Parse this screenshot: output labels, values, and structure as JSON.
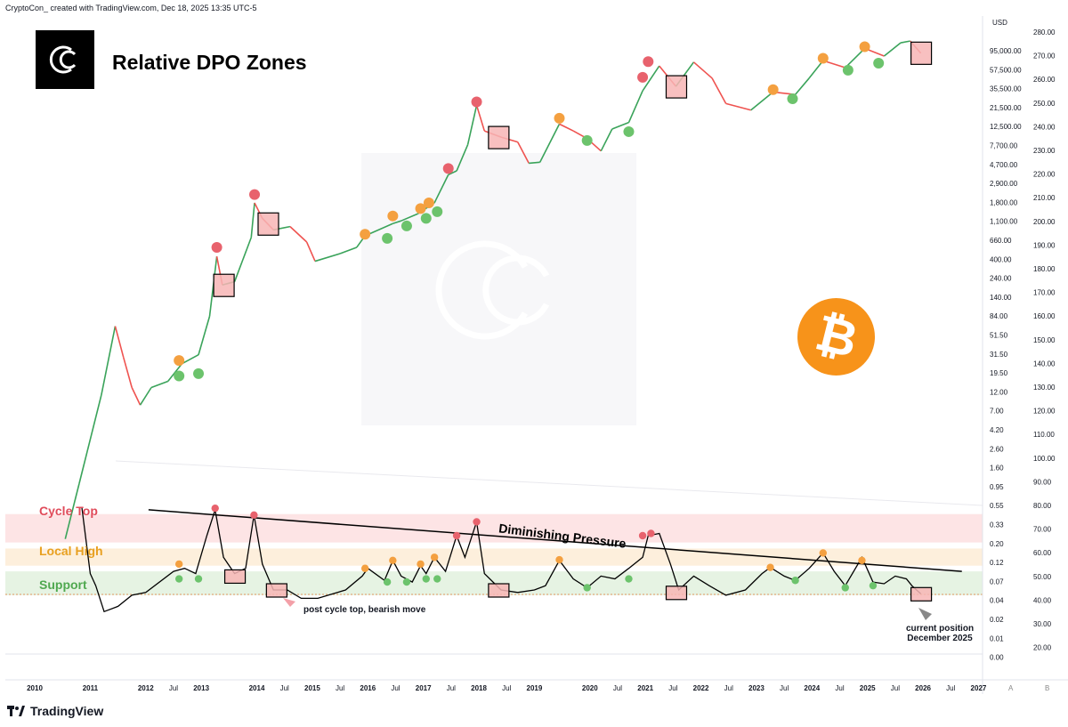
{
  "header": {
    "attribution": "CryptoCon_ created with TradingView.com, Dec 18, 2025 13:35 UTC-5"
  },
  "title": "Relative DPO Zones",
  "brand": {
    "name": "TradingView"
  },
  "currency": "USD",
  "colors": {
    "cycle_top": "#e04b5a",
    "local_high": "#f0a020",
    "support": "#5cb85c",
    "up": "#26a69a",
    "down": "#ef5350",
    "btc": "#f7931a"
  },
  "zones": {
    "cycle_top": {
      "label": "Cycle Top",
      "range": [
        0.075,
        0.25
      ]
    },
    "local_high": {
      "label": "Local High",
      "range": [
        0.028,
        0.058
      ]
    },
    "support": {
      "label": "Support",
      "range": [
        0.008,
        0.022
      ]
    }
  },
  "annotations": {
    "trendline": "Diminishing Pressure",
    "post_cycle": "post cycle top, bearish move",
    "current_line1": "current position",
    "current_line2": "December 2025"
  },
  "chart_data": {
    "type": "line",
    "x_axis": {
      "ticks": [
        {
          "label": "2010",
          "date": 2010.0,
          "bold": true
        },
        {
          "label": "2011",
          "date": 2011.0,
          "bold": true
        },
        {
          "label": "2012",
          "date": 2012.0,
          "bold": true
        },
        {
          "label": "Jul",
          "date": 2012.5,
          "bold": false
        },
        {
          "label": "2013",
          "date": 2013.0,
          "bold": true
        },
        {
          "label": "2014",
          "date": 2014.0,
          "bold": true
        },
        {
          "label": "Jul",
          "date": 2014.5,
          "bold": false
        },
        {
          "label": "2015",
          "date": 2015.0,
          "bold": true
        },
        {
          "label": "Jul",
          "date": 2015.5,
          "bold": false
        },
        {
          "label": "2016",
          "date": 2016.0,
          "bold": true
        },
        {
          "label": "Jul",
          "date": 2016.5,
          "bold": false
        },
        {
          "label": "2017",
          "date": 2017.0,
          "bold": true
        },
        {
          "label": "Jul",
          "date": 2017.5,
          "bold": false
        },
        {
          "label": "2018",
          "date": 2018.0,
          "bold": true
        },
        {
          "label": "Jul",
          "date": 2018.5,
          "bold": false
        },
        {
          "label": "2019",
          "date": 2019.0,
          "bold": true
        },
        {
          "label": "2020",
          "date": 2020.0,
          "bold": true
        },
        {
          "label": "Jul",
          "date": 2020.5,
          "bold": false
        },
        {
          "label": "2021",
          "date": 2021.0,
          "bold": true
        },
        {
          "label": "Jul",
          "date": 2021.5,
          "bold": false
        },
        {
          "label": "2022",
          "date": 2022.0,
          "bold": true
        },
        {
          "label": "Jul",
          "date": 2022.5,
          "bold": false
        },
        {
          "label": "2023",
          "date": 2023.0,
          "bold": true
        },
        {
          "label": "Jul",
          "date": 2023.5,
          "bold": false
        },
        {
          "label": "2024",
          "date": 2024.0,
          "bold": true
        },
        {
          "label": "Jul",
          "date": 2024.5,
          "bold": false
        },
        {
          "label": "2025",
          "date": 2025.0,
          "bold": true
        },
        {
          "label": "Jul",
          "date": 2025.5,
          "bold": false
        },
        {
          "label": "2026",
          "date": 2026.0,
          "bold": true
        },
        {
          "label": "Jul",
          "date": 2026.5,
          "bold": false
        },
        {
          "label": "2027",
          "date": 2027.0,
          "bold": true
        }
      ],
      "corner_labels": [
        "A",
        "B"
      ]
    },
    "price_axis": {
      "scale": "log",
      "labels": [
        "95,000.00",
        "57,500.00",
        "35,500.00",
        "21,500.00",
        "12,500.00",
        "7,700.00",
        "4,700.00",
        "2,900.00",
        "1,800.00",
        "1,100.00",
        "660.00",
        "400.00",
        "240.00",
        "140.00",
        "84.00",
        "51.50",
        "31.50",
        "19.50",
        "12.00",
        "7.00",
        "4.20",
        "2.60",
        "1.60",
        "0.95",
        "0.55",
        "0.33",
        "0.20",
        "0.12",
        "0.07",
        "0.04",
        "0.02",
        "0.01",
        "0.00"
      ]
    },
    "right_axis": {
      "labels": [
        "280.00",
        "270.00",
        "260.00",
        "250.00",
        "240.00",
        "230.00",
        "220.00",
        "210.00",
        "200.00",
        "190.00",
        "180.00",
        "170.00",
        "160.00",
        "150.00",
        "140.00",
        "130.00",
        "120.00",
        "110.00",
        "100.00",
        "90.00",
        "80.00",
        "70.00",
        "60.00",
        "50.00",
        "40.00",
        "30.00",
        "20.00"
      ]
    },
    "price_series": {
      "name": "BTC price",
      "points": [
        [
          2010.55,
          0.06
        ],
        [
          2010.8,
          0.3
        ],
        [
          2011.2,
          4
        ],
        [
          2011.45,
          30
        ],
        [
          2011.6,
          12
        ],
        [
          2011.75,
          5
        ],
        [
          2011.9,
          3
        ],
        [
          2012.1,
          5
        ],
        [
          2012.4,
          6
        ],
        [
          2012.65,
          10
        ],
        [
          2012.95,
          13
        ],
        [
          2013.15,
          40
        ],
        [
          2013.28,
          230
        ],
        [
          2013.38,
          100
        ],
        [
          2013.6,
          110
        ],
        [
          2013.9,
          400
        ],
        [
          2013.96,
          1100
        ],
        [
          2014.1,
          700
        ],
        [
          2014.3,
          500
        ],
        [
          2014.6,
          550
        ],
        [
          2014.9,
          350
        ],
        [
          2015.05,
          200
        ],
        [
          2015.5,
          250
        ],
        [
          2015.8,
          300
        ],
        [
          2015.95,
          420
        ],
        [
          2016.45,
          600
        ],
        [
          2016.6,
          650
        ],
        [
          2016.9,
          800
        ],
        [
          2017.2,
          1100
        ],
        [
          2017.45,
          2500
        ],
        [
          2017.6,
          2800
        ],
        [
          2017.8,
          6000
        ],
        [
          2017.96,
          19000
        ],
        [
          2018.1,
          9000
        ],
        [
          2018.4,
          7500
        ],
        [
          2018.7,
          6500
        ],
        [
          2018.9,
          3500
        ],
        [
          2019.1,
          3600
        ],
        [
          2019.45,
          11000
        ],
        [
          2019.7,
          9000
        ],
        [
          2019.95,
          7200
        ],
        [
          2020.2,
          5000
        ],
        [
          2020.4,
          9500
        ],
        [
          2020.7,
          11500
        ],
        [
          2020.95,
          29000
        ],
        [
          2021.25,
          60000
        ],
        [
          2021.55,
          33000
        ],
        [
          2021.87,
          67000
        ],
        [
          2022.2,
          42000
        ],
        [
          2022.45,
          20000
        ],
        [
          2022.9,
          16500
        ],
        [
          2023.3,
          28000
        ],
        [
          2023.7,
          26000
        ],
        [
          2023.95,
          42000
        ],
        [
          2024.2,
          70000
        ],
        [
          2024.6,
          57000
        ],
        [
          2024.95,
          100000
        ],
        [
          2025.3,
          80000
        ],
        [
          2025.6,
          118000
        ],
        [
          2025.77,
          124000
        ],
        [
          2025.96,
          87000
        ]
      ]
    },
    "dpo_series": {
      "name": "Relative DPO",
      "points": [
        [
          2010.85,
          0.33
        ],
        [
          2011.0,
          0.02
        ],
        [
          2011.1,
          0.012
        ],
        [
          2011.25,
          0.004
        ],
        [
          2011.5,
          0.005
        ],
        [
          2011.75,
          0.008
        ],
        [
          2012.0,
          0.009
        ],
        [
          2012.5,
          0.022
        ],
        [
          2012.7,
          0.025
        ],
        [
          2012.9,
          0.02
        ],
        [
          2013.1,
          0.1
        ],
        [
          2013.25,
          0.3
        ],
        [
          2013.4,
          0.04
        ],
        [
          2013.6,
          0.02
        ],
        [
          2013.8,
          0.025
        ],
        [
          2013.95,
          0.24
        ],
        [
          2014.1,
          0.03
        ],
        [
          2014.3,
          0.01
        ],
        [
          2014.55,
          0.01
        ],
        [
          2014.8,
          0.007
        ],
        [
          2015.1,
          0.007
        ],
        [
          2015.6,
          0.01
        ],
        [
          2015.9,
          0.018
        ],
        [
          2016.0,
          0.025
        ],
        [
          2016.3,
          0.015
        ],
        [
          2016.45,
          0.035
        ],
        [
          2016.6,
          0.018
        ],
        [
          2016.8,
          0.014
        ],
        [
          2016.95,
          0.028
        ],
        [
          2017.05,
          0.02
        ],
        [
          2017.2,
          0.04
        ],
        [
          2017.4,
          0.022
        ],
        [
          2017.6,
          0.1
        ],
        [
          2017.75,
          0.04
        ],
        [
          2017.96,
          0.18
        ],
        [
          2018.1,
          0.02
        ],
        [
          2018.4,
          0.01
        ],
        [
          2018.7,
          0.009
        ],
        [
          2019.0,
          0.01
        ],
        [
          2019.2,
          0.012
        ],
        [
          2019.45,
          0.035
        ],
        [
          2019.7,
          0.016
        ],
        [
          2019.95,
          0.011
        ],
        [
          2020.2,
          0.018
        ],
        [
          2020.45,
          0.016
        ],
        [
          2020.7,
          0.025
        ],
        [
          2020.95,
          0.04
        ],
        [
          2021.05,
          0.1
        ],
        [
          2021.25,
          0.11
        ],
        [
          2021.45,
          0.03
        ],
        [
          2021.6,
          0.01
        ],
        [
          2021.87,
          0.018
        ],
        [
          2022.15,
          0.012
        ],
        [
          2022.45,
          0.008
        ],
        [
          2022.8,
          0.01
        ],
        [
          2023.1,
          0.02
        ],
        [
          2023.25,
          0.026
        ],
        [
          2023.5,
          0.018
        ],
        [
          2023.7,
          0.015
        ],
        [
          2023.95,
          0.025
        ],
        [
          2024.2,
          0.048
        ],
        [
          2024.4,
          0.022
        ],
        [
          2024.6,
          0.012
        ],
        [
          2024.9,
          0.04
        ],
        [
          2025.1,
          0.014
        ],
        [
          2025.3,
          0.013
        ],
        [
          2025.5,
          0.018
        ],
        [
          2025.7,
          0.016
        ],
        [
          2025.8,
          0.012
        ],
        [
          2025.96,
          0.0085
        ]
      ]
    },
    "price_markers": [
      {
        "date": 2012.6,
        "value": 11,
        "zone": "local_high"
      },
      {
        "date": 2012.6,
        "value": 7,
        "zone": "support"
      },
      {
        "date": 2012.95,
        "value": 7.5,
        "zone": "support"
      },
      {
        "date": 2013.28,
        "value": 300,
        "zone": "cycle_top"
      },
      {
        "date": 2013.96,
        "value": 1400,
        "zone": "cycle_top"
      },
      {
        "date": 2015.95,
        "value": 440,
        "zone": "local_high"
      },
      {
        "date": 2016.35,
        "value": 390,
        "zone": "support"
      },
      {
        "date": 2016.45,
        "value": 750,
        "zone": "local_high"
      },
      {
        "date": 2016.7,
        "value": 560,
        "zone": "support"
      },
      {
        "date": 2016.95,
        "value": 930,
        "zone": "local_high"
      },
      {
        "date": 2017.05,
        "value": 700,
        "zone": "support"
      },
      {
        "date": 2017.1,
        "value": 1100,
        "zone": "local_high"
      },
      {
        "date": 2017.25,
        "value": 850,
        "zone": "support"
      },
      {
        "date": 2017.45,
        "value": 3000,
        "zone": "cycle_top"
      },
      {
        "date": 2017.96,
        "value": 21000,
        "zone": "cycle_top"
      },
      {
        "date": 2019.45,
        "value": 13000,
        "zone": "local_high"
      },
      {
        "date": 2019.95,
        "value": 6800,
        "zone": "support"
      },
      {
        "date": 2020.7,
        "value": 8800,
        "zone": "support"
      },
      {
        "date": 2020.95,
        "value": 43000,
        "zone": "cycle_top"
      },
      {
        "date": 2021.05,
        "value": 68000,
        "zone": "cycle_top"
      },
      {
        "date": 2023.3,
        "value": 30000,
        "zone": "local_high"
      },
      {
        "date": 2023.65,
        "value": 23000,
        "zone": "support"
      },
      {
        "date": 2024.2,
        "value": 75000,
        "zone": "local_high"
      },
      {
        "date": 2024.65,
        "value": 53000,
        "zone": "support"
      },
      {
        "date": 2024.95,
        "value": 105000,
        "zone": "local_high"
      },
      {
        "date": 2025.2,
        "value": 65000,
        "zone": "support"
      }
    ],
    "dpo_markers": [
      {
        "date": 2012.6,
        "value": 0.03,
        "zone": "local_high"
      },
      {
        "date": 2012.6,
        "value": 0.016,
        "zone": "support"
      },
      {
        "date": 2012.95,
        "value": 0.016,
        "zone": "support"
      },
      {
        "date": 2013.25,
        "value": 0.32,
        "zone": "cycle_top"
      },
      {
        "date": 2013.95,
        "value": 0.24,
        "zone": "cycle_top"
      },
      {
        "date": 2015.95,
        "value": 0.025,
        "zone": "local_high"
      },
      {
        "date": 2016.35,
        "value": 0.014,
        "zone": "support"
      },
      {
        "date": 2016.45,
        "value": 0.035,
        "zone": "local_high"
      },
      {
        "date": 2016.7,
        "value": 0.014,
        "zone": "support"
      },
      {
        "date": 2016.95,
        "value": 0.03,
        "zone": "local_high"
      },
      {
        "date": 2017.05,
        "value": 0.016,
        "zone": "support"
      },
      {
        "date": 2017.2,
        "value": 0.04,
        "zone": "local_high"
      },
      {
        "date": 2017.25,
        "value": 0.016,
        "zone": "support"
      },
      {
        "date": 2017.6,
        "value": 0.1,
        "zone": "cycle_top"
      },
      {
        "date": 2017.96,
        "value": 0.18,
        "zone": "cycle_top"
      },
      {
        "date": 2019.45,
        "value": 0.036,
        "zone": "local_high"
      },
      {
        "date": 2019.95,
        "value": 0.011,
        "zone": "support"
      },
      {
        "date": 2020.7,
        "value": 0.016,
        "zone": "support"
      },
      {
        "date": 2020.95,
        "value": 0.1,
        "zone": "cycle_top"
      },
      {
        "date": 2021.1,
        "value": 0.11,
        "zone": "cycle_top"
      },
      {
        "date": 2023.25,
        "value": 0.026,
        "zone": "local_high"
      },
      {
        "date": 2023.7,
        "value": 0.015,
        "zone": "support"
      },
      {
        "date": 2024.2,
        "value": 0.048,
        "zone": "local_high"
      },
      {
        "date": 2024.6,
        "value": 0.011,
        "zone": "support"
      },
      {
        "date": 2024.9,
        "value": 0.035,
        "zone": "local_high"
      },
      {
        "date": 2025.1,
        "value": 0.012,
        "zone": "support"
      }
    ],
    "price_boxes": [
      {
        "date": 2013.4,
        "value": 100
      },
      {
        "date": 2014.2,
        "value": 600
      },
      {
        "date": 2018.35,
        "value": 7500
      },
      {
        "date": 2021.55,
        "value": 33000
      },
      {
        "date": 2025.96,
        "value": 88000
      }
    ],
    "dpo_boxes": [
      {
        "date": 2013.6,
        "value": 0.018
      },
      {
        "date": 2014.35,
        "value": 0.01
      },
      {
        "date": 2018.35,
        "value": 0.01
      },
      {
        "date": 2021.55,
        "value": 0.009
      },
      {
        "date": 2025.96,
        "value": 0.0085
      }
    ],
    "trendline": {
      "from": [
        2012.05,
        0.3
      ],
      "to": [
        2026.7,
        0.022
      ]
    }
  }
}
